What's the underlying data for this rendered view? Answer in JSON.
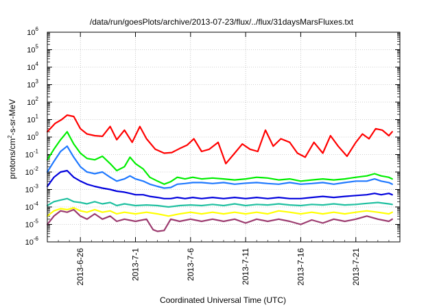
{
  "chart_data": {
    "type": "line",
    "title": "/data/run/goesPlots/archive/2013-07-23/flux/../flux/31daysMarsFluxes.txt",
    "xlabel": "Coordinated Universal Time (UTC)",
    "ylabel": {
      "prefix": "protons/cm",
      "superscript": "2",
      "suffix": "-s-sr-MeV"
    },
    "yscale": "log",
    "ylim": [
      1e-06,
      1000000.0
    ],
    "xlim": [
      "2013-06-23",
      "2013-07-25"
    ],
    "grid": true,
    "y_ticks": [
      {
        "base": "10",
        "exp": "-6"
      },
      {
        "base": "10",
        "exp": "-5"
      },
      {
        "base": "10",
        "exp": "-4"
      },
      {
        "base": "10",
        "exp": "-3"
      },
      {
        "base": "10",
        "exp": "-2"
      },
      {
        "base": "10",
        "exp": "-1"
      },
      {
        "base": "10",
        "exp": "0"
      },
      {
        "base": "10",
        "exp": "1"
      },
      {
        "base": "10",
        "exp": "2"
      },
      {
        "base": "10",
        "exp": "3"
      },
      {
        "base": "10",
        "exp": "4"
      },
      {
        "base": "10",
        "exp": "5"
      },
      {
        "base": "10",
        "exp": "6"
      }
    ],
    "x_ticks": [
      "2013-6-26",
      "2013-7-1",
      "2013-7-6",
      "2013-7-11",
      "2013-7-16",
      "2013-7-21"
    ],
    "series": [
      {
        "color": "#ff0000",
        "x": [
          0,
          0.7,
          1.3,
          1.8,
          2.4,
          3.0,
          3.6,
          4.3,
          5.0,
          5.7,
          6.3,
          7.0,
          7.7,
          8.4,
          9.0,
          9.8,
          10.6,
          11.3,
          12.0,
          12.7,
          13.3,
          14.0,
          14.7,
          15.5,
          16.2,
          17.0,
          17.7,
          18.4,
          19.1,
          19.8,
          20.5,
          21.2,
          22.0,
          22.7,
          23.4,
          24.2,
          25.0,
          25.7,
          26.4,
          27.2,
          28.0,
          28.6,
          29.2,
          29.8,
          30.4,
          31.0,
          31.3
        ],
        "values": [
          2,
          6,
          10,
          18,
          15,
          3,
          1.5,
          1.2,
          1.1,
          4,
          0.7,
          2.5,
          0.5,
          4,
          0.8,
          0.2,
          0.12,
          0.13,
          0.22,
          0.35,
          0.8,
          0.15,
          0.2,
          0.5,
          0.03,
          0.12,
          0.4,
          0.2,
          0.15,
          2.5,
          0.3,
          0.8,
          0.5,
          0.12,
          0.07,
          0.5,
          0.12,
          1.2,
          0.3,
          0.08,
          0.5,
          1.5,
          0.8,
          3,
          2.5,
          1.2,
          2
        ]
      },
      {
        "color": "#00ee00",
        "x": [
          0,
          0.6,
          1.2,
          1.8,
          2.4,
          3.0,
          3.6,
          4.3,
          5.0,
          5.7,
          6.3,
          7.0,
          7.5,
          8.0,
          8.7,
          9.3,
          10.0,
          10.6,
          11.2,
          11.8,
          12.5,
          13.2,
          14.0,
          15.0,
          16.0,
          17.0,
          18.0,
          19.0,
          20.0,
          21.0,
          22.0,
          23.0,
          24.0,
          25.0,
          26.0,
          27.0,
          28.0,
          29.0,
          29.7,
          30.3,
          31.0,
          31.3
        ],
        "values": [
          0.05,
          0.2,
          0.7,
          2,
          0.4,
          0.12,
          0.06,
          0.05,
          0.08,
          0.03,
          0.012,
          0.02,
          0.07,
          0.03,
          0.015,
          0.005,
          0.003,
          0.002,
          0.0028,
          0.005,
          0.004,
          0.005,
          0.004,
          0.0045,
          0.004,
          0.0035,
          0.004,
          0.005,
          0.0045,
          0.0035,
          0.004,
          0.003,
          0.0035,
          0.004,
          0.0035,
          0.004,
          0.005,
          0.006,
          0.008,
          0.006,
          0.005,
          0.004
        ]
      },
      {
        "color": "#1e78ff",
        "x": [
          0,
          0.6,
          1.2,
          1.8,
          2.4,
          3.0,
          3.6,
          4.3,
          5.0,
          5.7,
          6.3,
          7.0,
          7.5,
          8.0,
          8.7,
          9.3,
          10.0,
          10.6,
          11.2,
          11.8,
          12.5,
          13.2,
          14.0,
          15.0,
          16.0,
          17.0,
          18.0,
          19.0,
          20.0,
          21.0,
          22.0,
          23.0,
          24.0,
          25.0,
          26.0,
          27.0,
          28.0,
          29.0,
          29.7,
          30.3,
          31.0,
          31.3
        ],
        "values": [
          0.01,
          0.04,
          0.15,
          0.3,
          0.07,
          0.02,
          0.01,
          0.008,
          0.01,
          0.005,
          0.003,
          0.004,
          0.006,
          0.004,
          0.003,
          0.002,
          0.0015,
          0.0012,
          0.0013,
          0.002,
          0.0022,
          0.0025,
          0.0025,
          0.0022,
          0.0025,
          0.002,
          0.0023,
          0.0025,
          0.0022,
          0.002,
          0.0025,
          0.002,
          0.0022,
          0.0025,
          0.002,
          0.0025,
          0.003,
          0.003,
          0.004,
          0.003,
          0.0025,
          0.002
        ]
      },
      {
        "color": "#0000dd",
        "x": [
          0,
          0.6,
          1.2,
          1.8,
          2.4,
          3.0,
          3.6,
          4.3,
          5.0,
          5.7,
          6.3,
          7.0,
          7.5,
          8.0,
          8.7,
          9.3,
          10.0,
          10.6,
          11.2,
          11.8,
          12.5,
          13.2,
          14.0,
          15.0,
          16.0,
          17.0,
          18.0,
          19.0,
          20.0,
          21.0,
          22.0,
          23.0,
          24.0,
          25.0,
          26.0,
          27.0,
          28.0,
          29.0,
          29.7,
          30.3,
          31.0,
          31.3
        ],
        "values": [
          0.0015,
          0.005,
          0.01,
          0.012,
          0.005,
          0.003,
          0.002,
          0.0015,
          0.0012,
          0.001,
          0.0008,
          0.0007,
          0.0006,
          0.0005,
          0.0005,
          0.0004,
          0.00035,
          0.0003,
          0.0003,
          0.00035,
          0.0003,
          0.00035,
          0.0003,
          0.00035,
          0.0003,
          0.00035,
          0.0003,
          0.00035,
          0.0003,
          0.00035,
          0.0003,
          0.0003,
          0.00035,
          0.0004,
          0.00035,
          0.0004,
          0.00045,
          0.0005,
          0.0006,
          0.0005,
          0.0006,
          0.0005
        ]
      },
      {
        "color": "#20c0a0",
        "x": [
          0,
          0.6,
          1.2,
          1.8,
          2.4,
          3.0,
          3.6,
          4.3,
          5.0,
          5.7,
          6.3,
          7.0,
          8.0,
          9.0,
          10.0,
          11.0,
          12.0,
          13.0,
          14.0,
          15.0,
          16.0,
          17.0,
          18.0,
          19.0,
          20.0,
          21.0,
          22.0,
          23.0,
          24.0,
          25.0,
          26.0,
          27.0,
          28.0,
          29.0,
          30.0,
          31.0,
          31.3
        ],
        "values": [
          0.00012,
          0.0002,
          0.00025,
          0.0003,
          0.0002,
          0.00018,
          0.00015,
          0.0002,
          0.00015,
          0.00018,
          0.00012,
          0.00015,
          0.00012,
          0.00013,
          0.00012,
          0.0001,
          0.00012,
          0.00013,
          0.00012,
          0.00014,
          0.00012,
          0.00015,
          0.00012,
          0.00014,
          0.00013,
          0.00015,
          0.00013,
          0.00012,
          0.00014,
          0.00013,
          0.00015,
          0.00013,
          0.00014,
          0.00016,
          0.00018,
          0.00015,
          0.00014
        ]
      },
      {
        "color": "#ffff00",
        "x": [
          0,
          0.6,
          1.2,
          1.8,
          2.4,
          3.0,
          3.6,
          4.3,
          5.0,
          5.7,
          6.3,
          7.0,
          8.0,
          9.0,
          10.0,
          11.0,
          12.0,
          13.0,
          14.0,
          15.0,
          16.0,
          17.0,
          18.0,
          19.0,
          20.0,
          21.0,
          22.0,
          23.0,
          24.0,
          25.0,
          26.0,
          27.0,
          28.0,
          29.0,
          30.0,
          31.0,
          31.3
        ],
        "values": [
          3e-05,
          6e-05,
          8e-05,
          7e-05,
          9e-05,
          6e-05,
          5e-05,
          7e-05,
          5e-05,
          6e-05,
          4e-05,
          5e-05,
          4e-05,
          5e-05,
          4e-05,
          3e-05,
          4e-05,
          5e-05,
          4e-05,
          5e-05,
          4e-05,
          5e-05,
          4e-05,
          5e-05,
          4e-05,
          6e-05,
          5e-05,
          4e-05,
          5e-05,
          4e-05,
          5e-05,
          4e-05,
          5e-05,
          6e-05,
          5e-05,
          4e-05,
          5e-05
        ]
      },
      {
        "color": "#9b3a6e",
        "x": [
          0,
          0.6,
          1.2,
          1.8,
          2.4,
          3.0,
          3.6,
          4.3,
          5.0,
          5.7,
          6.3,
          7.0,
          8.0,
          9.0,
          9.6,
          10.0,
          10.6,
          11.2,
          12.0,
          13.0,
          14.0,
          15.0,
          16.0,
          17.0,
          18.0,
          19.0,
          20.0,
          21.0,
          22.0,
          23.0,
          24.0,
          25.0,
          26.0,
          27.0,
          28.0,
          29.0,
          30.0,
          31.0,
          31.3
        ],
        "values": [
          1e-05,
          3e-05,
          6e-05,
          5e-05,
          7e-05,
          3e-05,
          2e-05,
          4e-05,
          2e-05,
          3e-05,
          1.5e-05,
          2e-05,
          1.5e-05,
          2e-05,
          5e-06,
          4e-06,
          4.5e-06,
          2e-05,
          1.5e-05,
          2e-05,
          1.5e-05,
          2e-05,
          1.5e-05,
          2e-05,
          1.2e-05,
          2e-05,
          1.5e-05,
          2e-05,
          1.5e-05,
          1e-05,
          1.8e-05,
          1.2e-05,
          2e-05,
          1.5e-05,
          2e-05,
          3e-05,
          2e-05,
          1.5e-05,
          2e-05
        ]
      }
    ]
  }
}
